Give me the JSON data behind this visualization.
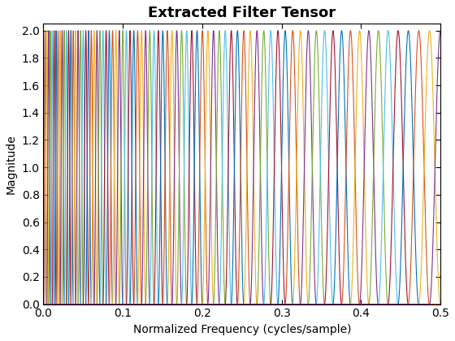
{
  "title": "Extracted Filter Tensor",
  "xlabel": "Normalized Frequency (cycles/sample)",
  "ylabel": "Magnitude",
  "xlim": [
    0,
    0.5
  ],
  "ylim": [
    0,
    2.05
  ],
  "n_filters": 81,
  "freq_max": 0.5,
  "peak_magnitude": 2.0,
  "background_color": "#ffffff",
  "title_fontsize": 13,
  "label_fontsize": 10,
  "yticks": [
    0,
    0.2,
    0.4,
    0.6,
    0.8,
    1.0,
    1.2,
    1.4,
    1.6,
    1.8,
    2.0
  ],
  "xticks": [
    0,
    0.1,
    0.2,
    0.3,
    0.4,
    0.5
  ],
  "colors": [
    "#0072bd",
    "#d95319",
    "#edb120",
    "#7e2f8e",
    "#77ac30",
    "#4dbeee",
    "#a2142f",
    "#0072bd",
    "#d95319",
    "#edb120",
    "#7e2f8e",
    "#77ac30",
    "#4dbeee",
    "#a2142f",
    "#0072bd",
    "#d95319",
    "#edb120",
    "#7e2f8e",
    "#77ac30",
    "#4dbeee",
    "#a2142f",
    "#0072bd",
    "#d95319",
    "#edb120",
    "#7e2f8e",
    "#77ac30",
    "#4dbeee",
    "#a2142f",
    "#0072bd",
    "#d95319",
    "#edb120",
    "#7e2f8e",
    "#77ac30",
    "#4dbeee",
    "#a2142f",
    "#0072bd",
    "#d95319",
    "#edb120",
    "#7e2f8e",
    "#77ac30",
    "#4dbeee",
    "#a2142f",
    "#0072bd",
    "#d95319",
    "#edb120",
    "#7e2f8e",
    "#77ac30",
    "#4dbeee",
    "#a2142f",
    "#0072bd",
    "#d95319",
    "#edb120",
    "#7e2f8e",
    "#77ac30",
    "#4dbeee",
    "#a2142f",
    "#0072bd",
    "#d95319",
    "#edb120",
    "#7e2f8e",
    "#77ac30",
    "#4dbeee",
    "#a2142f",
    "#0072bd",
    "#d95319",
    "#edb120",
    "#7e2f8e",
    "#77ac30",
    "#4dbeee",
    "#a2142f",
    "#0072bd",
    "#d95319",
    "#edb120",
    "#7e2f8e",
    "#77ac30",
    "#4dbeee",
    "#a2142f",
    "#0072bd",
    "#d95319",
    "#edb120",
    "#7e2f8e"
  ]
}
